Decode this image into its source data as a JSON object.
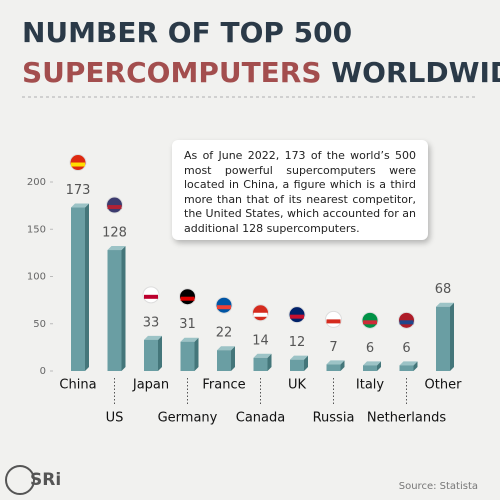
{
  "chart_data": {
    "type": "bar",
    "title": {
      "line1": "NUMBER OF TOP 500",
      "highlight": "SUPERCOMPUTERS",
      "rest": "WORLDWIDE"
    },
    "annotation": "As of June 2022, 173 of the world’s 500 most powerful supercomputers were located in China, a figure which is a third more than that of its nearest competitor, the United States, which accounted for an additional 128 supercomputers.",
    "categories": [
      "China",
      "US",
      "Japan",
      "Germany",
      "France",
      "Canada",
      "UK",
      "Russia",
      "Italy",
      "Netherlands",
      "Other"
    ],
    "values": [
      173,
      128,
      33,
      31,
      22,
      14,
      12,
      7,
      6,
      6,
      68
    ],
    "color": "#6a9ea3",
    "ylim": [
      0,
      200
    ],
    "yticks": [
      0,
      50,
      100,
      150,
      200
    ],
    "source": "Source: Statista",
    "logo": "SRi"
  }
}
